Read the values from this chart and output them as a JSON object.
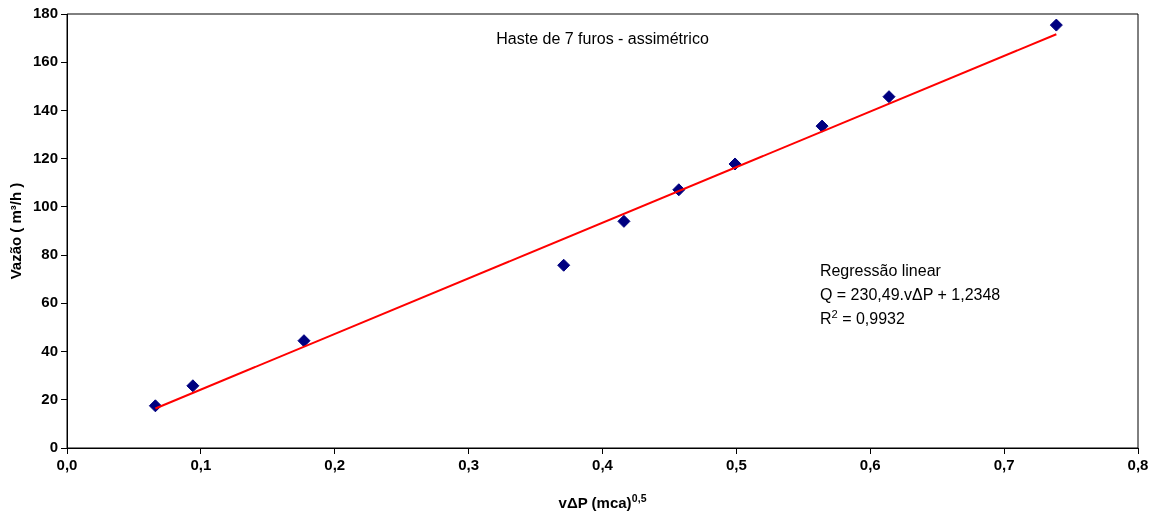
{
  "chart_data": {
    "type": "scatter",
    "title": "Haste de 7 furos - assimétrico",
    "xlabel": "vΔP (mca)$^{0,5}$",
    "ylabel": "Vazão ( m³/h )",
    "annotations": [
      "Regressão linear",
      "Q = 230,49.vΔP + 1,2348",
      "R$^{2}$ = 0,9932"
    ],
    "series": [
      {
        "type": "scatter",
        "color": "#000080",
        "marker": "diamond",
        "x": [
          0.066,
          0.094,
          0.177,
          0.371,
          0.416,
          0.457,
          0.499,
          0.564,
          0.614,
          0.739
        ],
        "values": [
          17.5,
          25.8,
          44.5,
          75.8,
          94,
          107.1,
          117.8,
          133.5,
          145.7,
          175.4
        ]
      },
      {
        "type": "line",
        "color": "#ff0000",
        "marker": "none",
        "line_style": "solid",
        "x": [
          0.066,
          0.739
        ],
        "values": [
          16.4,
          171.6
        ]
      }
    ],
    "xlim": [
      0,
      0.8
    ],
    "ylim": [
      0,
      180
    ],
    "xticks": [
      {
        "value": 0,
        "label": "0,0"
      },
      {
        "value": 0.1,
        "label": "0,1"
      },
      {
        "value": 0.2,
        "label": "0,2"
      },
      {
        "value": 0.3,
        "label": "0,3"
      },
      {
        "value": 0.4,
        "label": "0,4"
      },
      {
        "value": 0.5,
        "label": "0,5"
      },
      {
        "value": 0.6,
        "label": "0,6"
      },
      {
        "value": 0.7,
        "label": "0,7"
      },
      {
        "value": 0.8,
        "label": "0,8"
      }
    ],
    "yticks": [
      0,
      20,
      40,
      60,
      80,
      100,
      120,
      140,
      160,
      180
    ],
    "grid": false,
    "legend": false
  }
}
